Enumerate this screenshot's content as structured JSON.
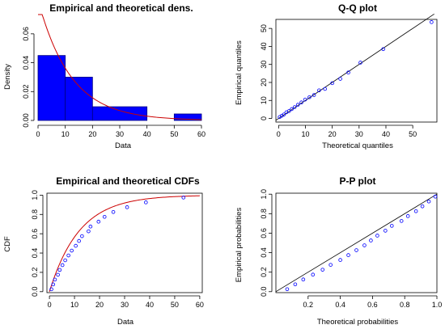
{
  "figure": {
    "background": "#ffffff",
    "colors": {
      "bar_fill": "#0000ff",
      "bar_stroke": "#000080",
      "curve": "#cc0000",
      "points": "#0000ff",
      "line": "#000000"
    }
  },
  "chart_data": [
    {
      "id": "density",
      "type": "bar",
      "title": "Empirical and theoretical dens.",
      "xlabel": "Data",
      "ylabel": "Density",
      "xlim": [
        0,
        60
      ],
      "ylim": [
        0,
        0.07
      ],
      "xticks": [
        0,
        10,
        20,
        30,
        40,
        50,
        60
      ],
      "yticks": [
        0.0,
        0.02,
        0.04,
        0.06
      ],
      "ytick_labels": [
        "0.00",
        "0.02",
        "0.04",
        "0.06"
      ],
      "bins": [
        {
          "x0": 0,
          "x1": 10,
          "density": 0.045
        },
        {
          "x0": 10,
          "x1": 20,
          "density": 0.03
        },
        {
          "x0": 20,
          "x1": 40,
          "density": 0.0095
        },
        {
          "x0": 40,
          "x1": 50,
          "density": 0.0
        },
        {
          "x0": 50,
          "x1": 60,
          "density": 0.0045
        }
      ],
      "theoretical_curve": {
        "type": "exponential",
        "rate": 0.0835
      }
    },
    {
      "id": "qq",
      "type": "scatter",
      "title": "Q-Q plot",
      "xlabel": "Theoretical quantiles",
      "ylabel": "Empirical quantiles",
      "xlim": [
        -1,
        59
      ],
      "ylim": [
        -2,
        55
      ],
      "xticks": [
        0,
        10,
        20,
        30,
        40,
        50
      ],
      "yticks": [
        0,
        10,
        20,
        30,
        40,
        50
      ],
      "reference_line": [
        [
          -1,
          -1
        ],
        [
          58,
          58
        ]
      ],
      "points": [
        [
          0.4,
          0.8
        ],
        [
          1.2,
          1.5
        ],
        [
          2.0,
          2.2
        ],
        [
          2.9,
          3.4
        ],
        [
          3.9,
          4.1
        ],
        [
          4.9,
          5.2
        ],
        [
          6.0,
          6.3
        ],
        [
          7.2,
          7.6
        ],
        [
          8.5,
          8.9
        ],
        [
          9.9,
          10.5
        ],
        [
          11.5,
          11.8
        ],
        [
          13.2,
          13.0
        ],
        [
          15.1,
          15.6
        ],
        [
          17.3,
          16.4
        ],
        [
          20.0,
          19.6
        ],
        [
          23.0,
          22.0
        ],
        [
          26.0,
          25.5
        ],
        [
          30.5,
          31.0
        ],
        [
          39.0,
          38.5
        ],
        [
          57.0,
          53.5
        ]
      ]
    },
    {
      "id": "cdf",
      "type": "line",
      "title": "Empirical and theoretical CDFs",
      "xlabel": "Data",
      "ylabel": "CDF",
      "xlim": [
        -1,
        61
      ],
      "ylim": [
        -0.01,
        1.02
      ],
      "xticks": [
        0,
        10,
        20,
        30,
        40,
        50,
        60
      ],
      "yticks": [
        0.0,
        0.2,
        0.4,
        0.6,
        0.8,
        1.0
      ],
      "ytick_labels": [
        "0.0",
        "0.2",
        "0.4",
        "0.6",
        "0.8",
        "1.0"
      ],
      "theoretical_curve": {
        "type": "exponential",
        "rate": 0.0835
      },
      "points": [
        [
          0.8,
          0.025
        ],
        [
          1.5,
          0.075
        ],
        [
          2.2,
          0.125
        ],
        [
          3.4,
          0.175
        ],
        [
          4.1,
          0.225
        ],
        [
          5.2,
          0.275
        ],
        [
          6.3,
          0.325
        ],
        [
          7.6,
          0.375
        ],
        [
          8.9,
          0.425
        ],
        [
          10.5,
          0.475
        ],
        [
          11.8,
          0.525
        ],
        [
          13.0,
          0.575
        ],
        [
          15.6,
          0.625
        ],
        [
          16.4,
          0.675
        ],
        [
          19.6,
          0.725
        ],
        [
          22.0,
          0.775
        ],
        [
          25.5,
          0.825
        ],
        [
          31.0,
          0.875
        ],
        [
          38.5,
          0.925
        ],
        [
          53.5,
          0.975
        ]
      ]
    },
    {
      "id": "pp",
      "type": "scatter",
      "title": "P-P plot",
      "xlabel": "Theoretical probabilities",
      "ylabel": "Empirical probabilities",
      "xlim": [
        0.0,
        1.0
      ],
      "ylim": [
        -0.01,
        1.01
      ],
      "xticks": [
        0.2,
        0.4,
        0.6,
        0.8,
        1.0
      ],
      "xtick_labels": [
        "0.2",
        "0.4",
        "0.6",
        "0.8",
        "1.0"
      ],
      "yticks": [
        0.0,
        0.2,
        0.4,
        0.6,
        0.8,
        1.0
      ],
      "ytick_labels": [
        "0.0",
        "0.2",
        "0.4",
        "0.6",
        "0.8",
        "1.0"
      ],
      "reference_line": [
        [
          0.0,
          0.0
        ],
        [
          1.0,
          1.0
        ]
      ],
      "points": [
        [
          0.07,
          0.025
        ],
        [
          0.12,
          0.075
        ],
        [
          0.17,
          0.125
        ],
        [
          0.23,
          0.175
        ],
        [
          0.29,
          0.225
        ],
        [
          0.34,
          0.275
        ],
        [
          0.4,
          0.325
        ],
        [
          0.45,
          0.375
        ],
        [
          0.5,
          0.425
        ],
        [
          0.55,
          0.475
        ],
        [
          0.59,
          0.525
        ],
        [
          0.63,
          0.575
        ],
        [
          0.68,
          0.625
        ],
        [
          0.72,
          0.675
        ],
        [
          0.78,
          0.725
        ],
        [
          0.82,
          0.775
        ],
        [
          0.87,
          0.825
        ],
        [
          0.91,
          0.875
        ],
        [
          0.95,
          0.925
        ],
        [
          0.99,
          0.975
        ]
      ]
    }
  ]
}
